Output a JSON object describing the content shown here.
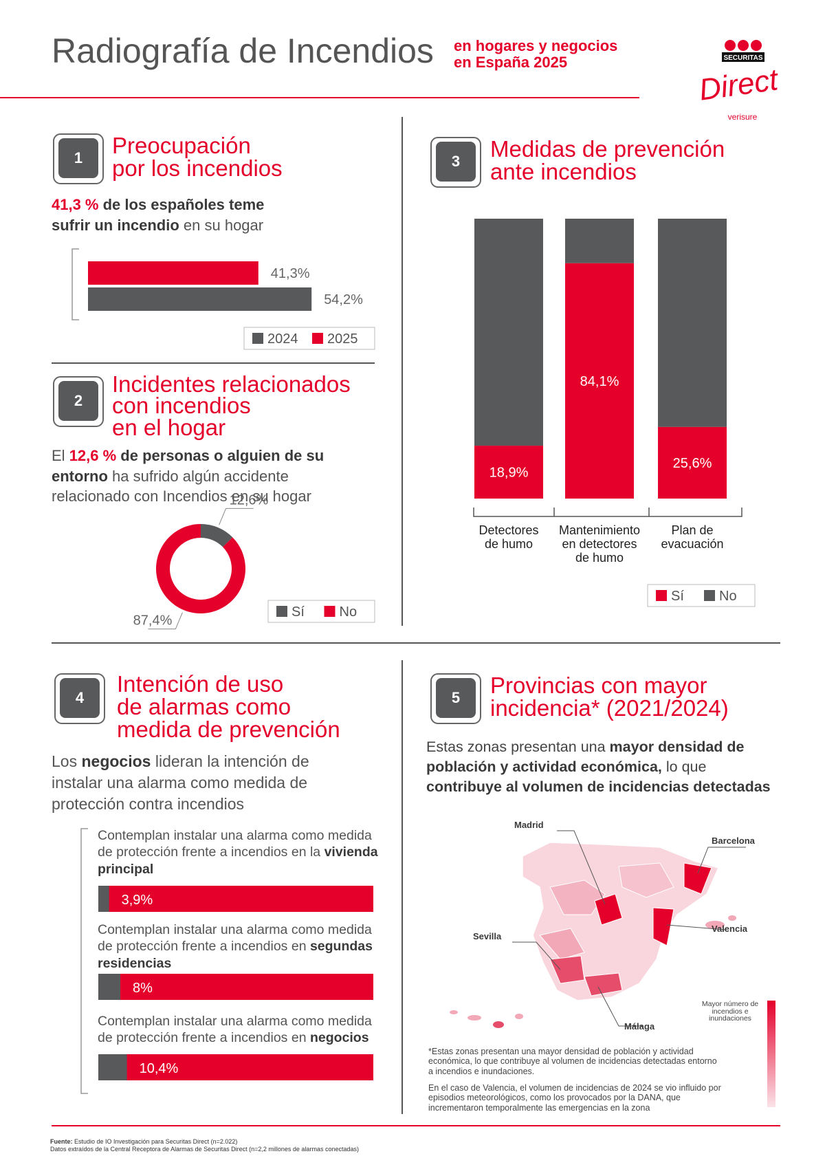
{
  "header": {
    "title": "Radiografía de Incendios",
    "subtitle": [
      "en hogares y negocios",
      "en España 2025"
    ],
    "logo": {
      "brand": "SECURITAS",
      "name": "Direct",
      "parent": "verisure"
    }
  },
  "sections": [
    {
      "number": "1",
      "title": [
        "Preocupación",
        "por los incendios"
      ],
      "text": [
        "41,3 %",
        " de los españoles teme sufrir un incendio",
        " en su hogar"
      ]
    },
    {
      "number": "2",
      "title": [
        "Incidentes relacionados",
        "con incendios",
        "en el hogar"
      ],
      "text": [
        "El ",
        "12,6 %",
        " de personas o alguien de su entorno",
        " ha sufrido algún accidente relacionado con Incendios en su hogar"
      ]
    },
    {
      "number": "3",
      "title": [
        "Medidas de prevención",
        "ante incendios"
      ]
    },
    {
      "number": "4",
      "title": [
        "Intención de uso",
        "de alarmas como",
        "medida de prevención"
      ],
      "text": [
        "Los ",
        "negocios",
        " lideran la intención de instalar una alarma como medida de protección contra incendios"
      ]
    },
    {
      "number": "5",
      "title": [
        "Provincias con mayor",
        "incidencia* (2021/2024)"
      ],
      "text": [
        "Estas zonas presentan una ",
        "mayor densidad de población y actividad económica,",
        " lo que ",
        "contribuye al volumen de incidencias detectadas"
      ],
      "notes": [
        "*Estas zonas presentan una mayor densidad de población y actividad económica, lo que contribuye al volumen de incidencias detectadas entorno a incendios e inundaciones.",
        "En el caso de Valencia, el volumen de incidencias de 2024 se vio influido por episodios meteorológicos, como los provocados por la DANA, que incrementaron temporalmente las emergencias en la zona"
      ]
    }
  ],
  "map": {
    "labels": [
      "Madrid",
      "Barcelona",
      "Sevilla",
      "Valencia",
      "Málaga"
    ],
    "legend": "Mayor número de incendios e inundaciones"
  },
  "footer": {
    "source": [
      "Fuente:",
      " Estudio de IO Investigación para Securitas Direct (n=2.022)"
    ],
    "data": "Datos extraídos de la Central Receptora de Alarmas de Securitas Direct (n=2,2 millones de alarmas conectadas)"
  },
  "chart_data": [
    {
      "type": "bar",
      "orientation": "horizontal",
      "categories": [
        null
      ],
      "xlim": [
        0,
        100
      ],
      "series": [
        {
          "name": "2024",
          "color": "#58595b",
          "values": [
            54.2
          ],
          "value_labels": [
            "54,2%"
          ]
        },
        {
          "name": "2025",
          "color": "#e4002b",
          "values": [
            41.3
          ],
          "value_labels": [
            "41,3%"
          ]
        }
      ]
    },
    {
      "type": "pie",
      "donut": true,
      "categories": [
        "Sí",
        "No"
      ],
      "values": [
        12.6,
        87.4
      ],
      "value_labels": [
        "12,6%",
        "87,4%"
      ],
      "colors": [
        "#58595b",
        "#e4002b"
      ]
    },
    {
      "type": "bar",
      "stacked": true,
      "ylim": [
        0,
        100
      ],
      "categories": [
        "Detectores\nde humo",
        "Mantenimiento\nen detectores\nde humo",
        "Plan de\nevacuación"
      ],
      "series": [
        {
          "name": "Sí",
          "color": "#e4002b",
          "values": [
            18.9,
            84.1,
            25.6
          ],
          "value_labels": [
            "18,9%",
            "84,1%",
            "25,6%"
          ]
        },
        {
          "name": "No",
          "color": "#58595b",
          "values": [
            81.1,
            15.9,
            74.4
          ]
        }
      ]
    },
    {
      "type": "bar",
      "orientation": "horizontal",
      "xlim": [
        0,
        100
      ],
      "color": "#58595b",
      "track_color": "#e4002b",
      "categories": [
        [
          "Contemplan instalar una alarma como medida de protección frente a incendios en la ",
          "vivienda principal"
        ],
        [
          "Contemplan instalar una alarma como medida de protección frente a incendios en ",
          "segundas residencias"
        ],
        [
          "Contemplan instalar una alarma como medida de protección frente a incendios en ",
          "negocios"
        ]
      ],
      "values": [
        3.9,
        8,
        10.4
      ],
      "value_labels": [
        "3,9%",
        "8%",
        "10,4%"
      ]
    }
  ]
}
